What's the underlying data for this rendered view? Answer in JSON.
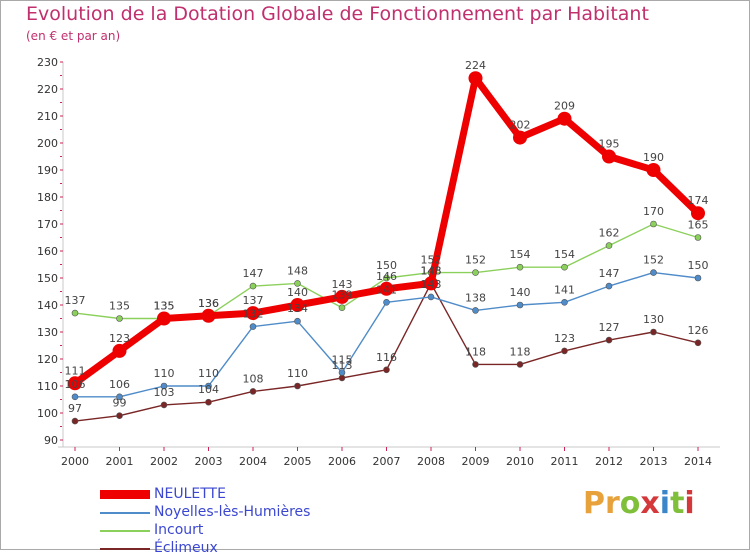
{
  "title": "Evolution de la Dotation Globale de Fonctionnement par Habitant",
  "subtitle": "(en € et par an)",
  "logo_text": "Proxiti",
  "chart_data": {
    "type": "line",
    "title": "Evolution de la Dotation Globale de Fonctionnement par Habitant",
    "subtitle": "(en € et par an)",
    "xlabel": "",
    "ylabel": "",
    "ylim": [
      90,
      230
    ],
    "y_ticks": [
      90,
      100,
      110,
      120,
      130,
      140,
      150,
      160,
      170,
      180,
      190,
      200,
      210,
      220,
      230
    ],
    "grid": false,
    "legend_position": "bottom-left",
    "x": [
      "2000",
      "2001",
      "2002",
      "2003",
      "2004",
      "2005",
      "2006",
      "2007",
      "2008",
      "2009",
      "2010",
      "2011",
      "2012",
      "2013",
      "2014"
    ],
    "series": [
      {
        "name": "Éclimeux",
        "color": "#7a2626",
        "values": [
          97,
          99,
          103,
          104,
          108,
          110,
          113,
          116,
          148,
          118,
          118,
          123,
          127,
          130,
          126
        ]
      },
      {
        "name": "Noyelles-lès-Humières",
        "color": "#4f8cc9",
        "values": [
          106,
          106,
          110,
          110,
          132,
          134,
          115,
          141,
          143,
          138,
          140,
          141,
          147,
          152,
          150
        ]
      },
      {
        "name": "Incourt",
        "color": "#8cd05c",
        "values": [
          137,
          135,
          135,
          136,
          147,
          148,
          139,
          150,
          152,
          152,
          154,
          154,
          162,
          170,
          165
        ]
      },
      {
        "name": "NEULETTE",
        "color": "#ee0000",
        "values": [
          111,
          123,
          135,
          136,
          137,
          140,
          143,
          146,
          148,
          224,
          202,
          209,
          195,
          190,
          174
        ]
      }
    ],
    "data_labels": {
      "Éclimeux": [
        "97",
        "99",
        "103",
        "104",
        "108",
        "110",
        "113",
        "116",
        "148",
        "118",
        "118",
        "123",
        "127",
        "130",
        "126"
      ],
      "Noyelles-lès-Humières": [
        "106",
        "106",
        "110",
        "110",
        "132",
        "134",
        "115",
        "141",
        "143",
        "138",
        "140",
        "141",
        "147",
        "152",
        "150"
      ],
      "Incourt": [
        "137",
        "135",
        "135",
        "136",
        "147",
        "148",
        "139",
        "150",
        "152",
        "152",
        "154",
        "154",
        "162",
        "170",
        "165"
      ],
      "NEULETTE": [
        "111",
        "123",
        "135",
        "136",
        "137",
        "140",
        "143",
        "146",
        "148",
        "224",
        "202",
        "209",
        "195",
        "190",
        "174"
      ]
    }
  },
  "legend": [
    {
      "name": "NEULETTE",
      "color": "#ee0000"
    },
    {
      "name": "Noyelles-lès-Humières",
      "color": "#4f8cc9"
    },
    {
      "name": "Incourt",
      "color": "#8cd05c"
    },
    {
      "name": "Éclimeux",
      "color": "#7a2626"
    }
  ]
}
